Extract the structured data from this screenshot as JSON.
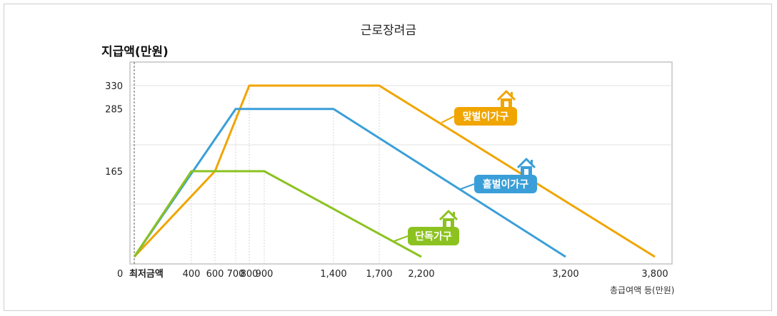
{
  "chart_data": {
    "type": "line",
    "title": "근로장려금",
    "ylabel": "지급액(만원)",
    "xlabel": "총급여액 등(만원)",
    "x_origin_label": "0",
    "x_tick_labels": [
      "최저금액",
      "400",
      "600",
      "700",
      "800",
      "900",
      "1,400",
      "1,700",
      "2,200",
      "3,200",
      "3,800"
    ],
    "y_tick_labels": [
      "165",
      "285",
      "330"
    ],
    "series": [
      {
        "name": "맞벌이가구",
        "color": "#f0a500",
        "points": [
          [
            "최저금액",
            0
          ],
          [
            600,
            165
          ],
          [
            800,
            330
          ],
          [
            1700,
            330
          ],
          [
            3800,
            0
          ]
        ]
      },
      {
        "name": "홑벌이가구",
        "color": "#3a9fd8",
        "points": [
          [
            "최저금액",
            0
          ],
          [
            700,
            285
          ],
          [
            1400,
            285
          ],
          [
            3200,
            0
          ]
        ]
      },
      {
        "name": "단독가구",
        "color": "#8cc220",
        "points": [
          [
            "최저금액",
            0
          ],
          [
            400,
            165
          ],
          [
            900,
            165
          ],
          [
            2200,
            0
          ]
        ]
      }
    ],
    "grid": true
  }
}
